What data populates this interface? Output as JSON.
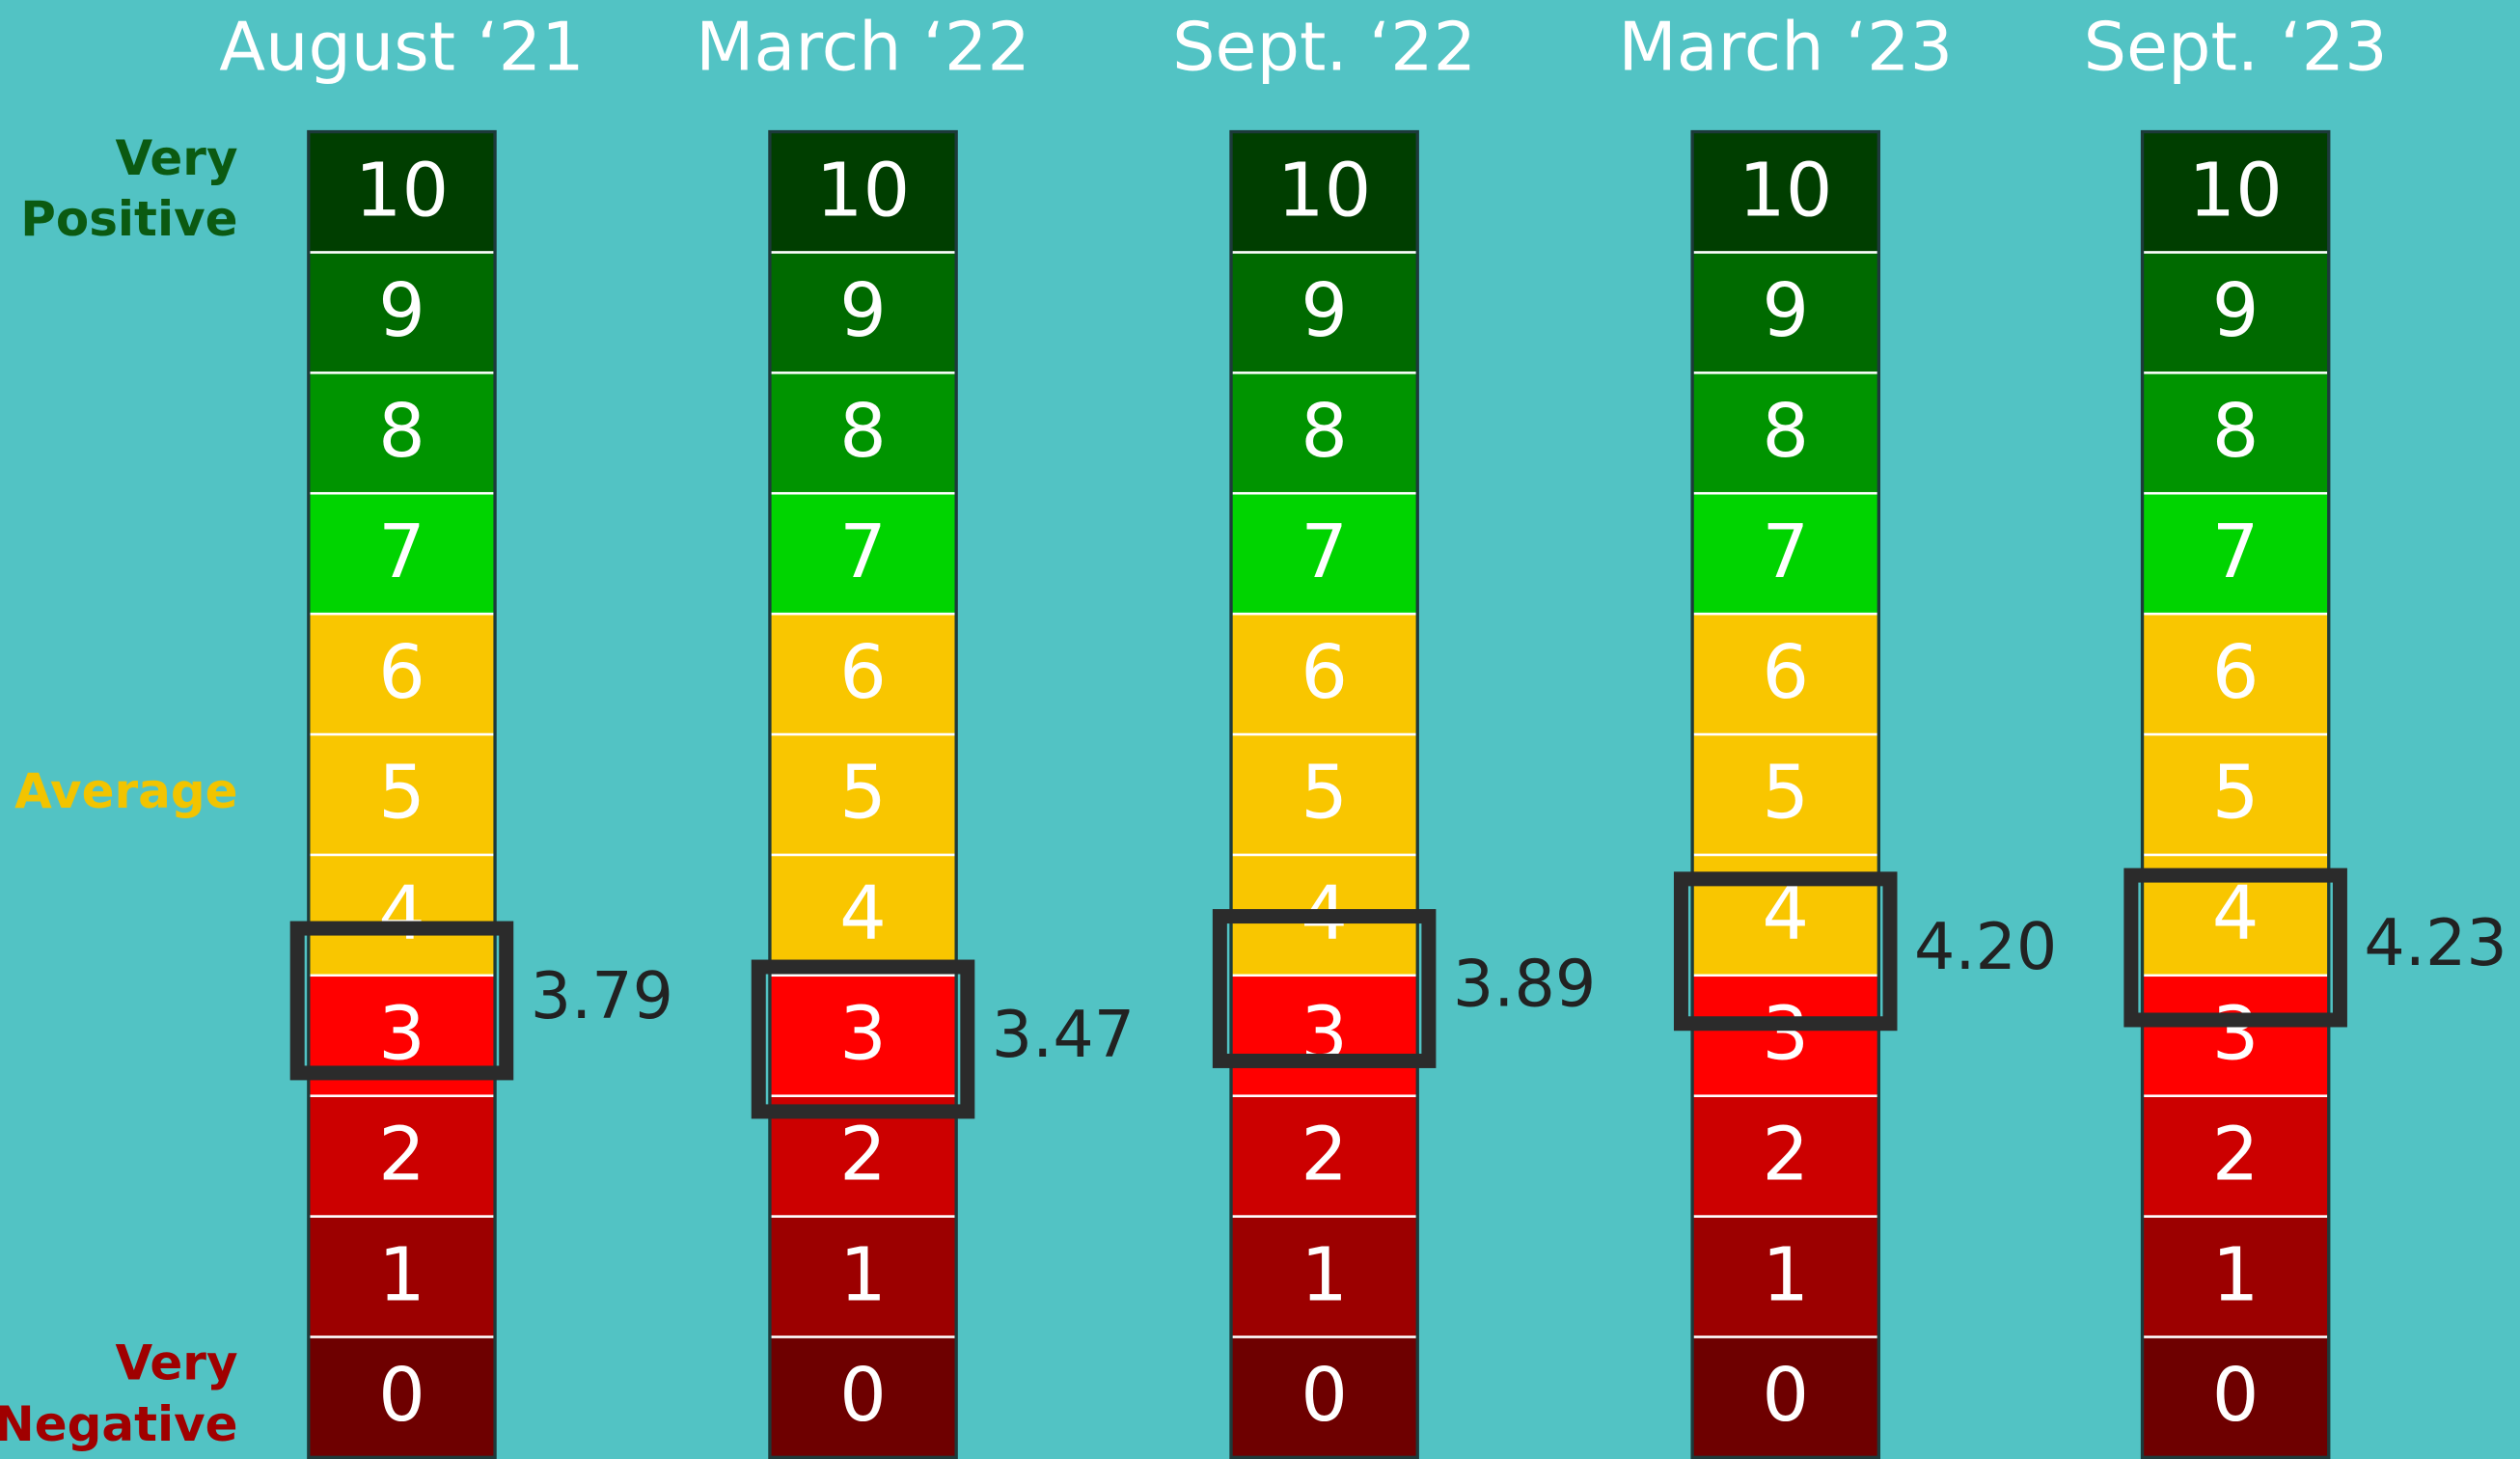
{
  "chart_data": {
    "type": "scale",
    "categories": [
      "August ‘21",
      "March ‘22",
      "Sept. ‘22",
      "March ‘23",
      "Sept. ‘23"
    ],
    "values": [
      3.79,
      3.47,
      3.89,
      4.2,
      4.23
    ],
    "value_labels": [
      "3.79",
      "3.47",
      "3.89",
      "4.20",
      "4.23"
    ],
    "ylim": [
      0,
      11
    ],
    "levels": [
      0,
      1,
      2,
      3,
      4,
      5,
      6,
      7,
      8,
      9,
      10
    ],
    "level_colors": [
      "#6e0000",
      "#9c0000",
      "#cc0000",
      "#ff0000",
      "#f9c600",
      "#f9c600",
      "#f9c600",
      "#00d400",
      "#009400",
      "#006a00",
      "#003e00"
    ],
    "scale_labels": [
      {
        "lines": [
          "Very",
          "Positive"
        ],
        "level": 10,
        "color": "#0b5a12"
      },
      {
        "lines": [
          "Average"
        ],
        "level": 5,
        "color": "#f2c400"
      },
      {
        "lines": [
          "Very",
          "Negative"
        ],
        "level": 0,
        "color": "#a00000"
      }
    ],
    "marker_color": "#2b2b2b",
    "background": "#52c3c4"
  }
}
